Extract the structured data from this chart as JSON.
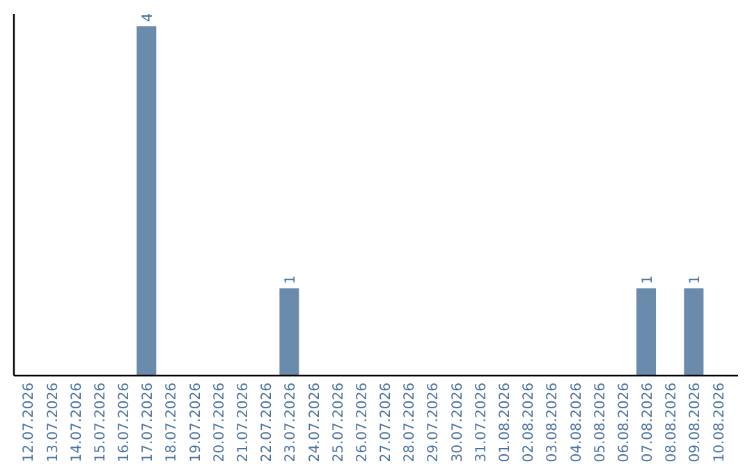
{
  "chart_data": {
    "type": "bar",
    "categories": [
      "12.07.2026",
      "13.07.2026",
      "14.07.2026",
      "15.07.2026",
      "16.07.2026",
      "17.07.2026",
      "18.07.2026",
      "19.07.2026",
      "20.07.2026",
      "21.07.2026",
      "22.07.2026",
      "23.07.2026",
      "24.07.2026",
      "25.07.2026",
      "26.07.2026",
      "27.07.2026",
      "28.07.2026",
      "29.07.2026",
      "30.07.2026",
      "31.07.2026",
      "01.08.2026",
      "02.08.2026",
      "03.08.2026",
      "04.08.2026",
      "05.08.2026",
      "06.08.2026",
      "07.08.2026",
      "08.08.2026",
      "09.08.2026",
      "10.08.2026"
    ],
    "values": [
      0,
      0,
      0,
      0,
      0,
      4,
      0,
      0,
      0,
      0,
      0,
      1,
      0,
      0,
      0,
      0,
      0,
      0,
      0,
      0,
      0,
      0,
      0,
      0,
      0,
      0,
      1,
      0,
      1,
      0
    ],
    "value_labels": [
      null,
      null,
      null,
      null,
      null,
      "4",
      null,
      null,
      null,
      null,
      null,
      "1",
      null,
      null,
      null,
      null,
      null,
      null,
      null,
      null,
      null,
      null,
      null,
      null,
      null,
      null,
      "1",
      null,
      "1",
      null
    ],
    "color": "#6a8bab",
    "tick_labels": "x"
  }
}
